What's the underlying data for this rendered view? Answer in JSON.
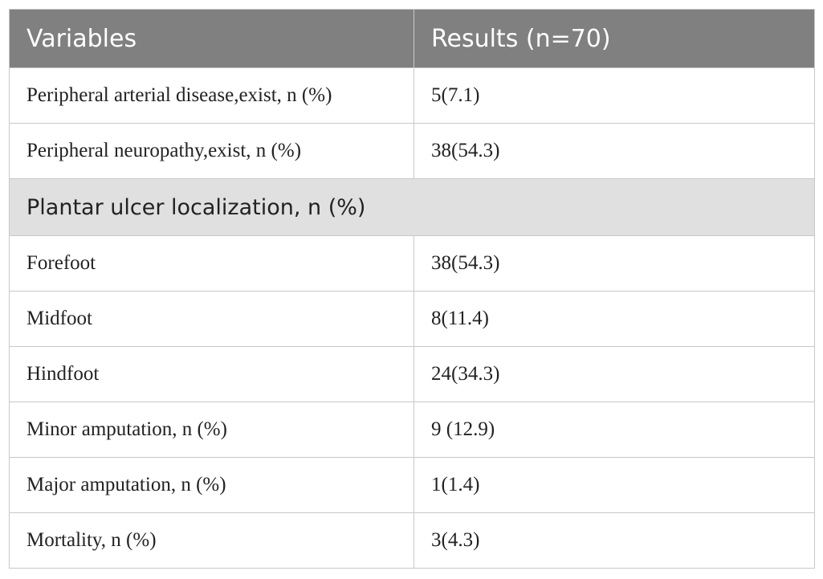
{
  "table": {
    "header": [
      "Variables",
      "Results (n=70)"
    ],
    "rows": [
      [
        "Peripheral arterial disease,exist, n (%)",
        "5(7.1)"
      ],
      [
        "Peripheral neuropathy,exist, n (%)",
        "38(54.3)"
      ],
      [
        "Plantar ulcer localization, n (%)"
      ],
      [
        "Forefoot",
        "38(54.3)"
      ],
      [
        "Midfoot",
        "8(11.4)"
      ],
      [
        "Hindfoot",
        "24(34.3)"
      ],
      [
        "Minor amputation, n (%)",
        "9 (12.9)"
      ],
      [
        "Major amputation, n (%)",
        "1(1.4)"
      ],
      [
        "Mortality, n (%)",
        "3(4.3)"
      ]
    ]
  }
}
